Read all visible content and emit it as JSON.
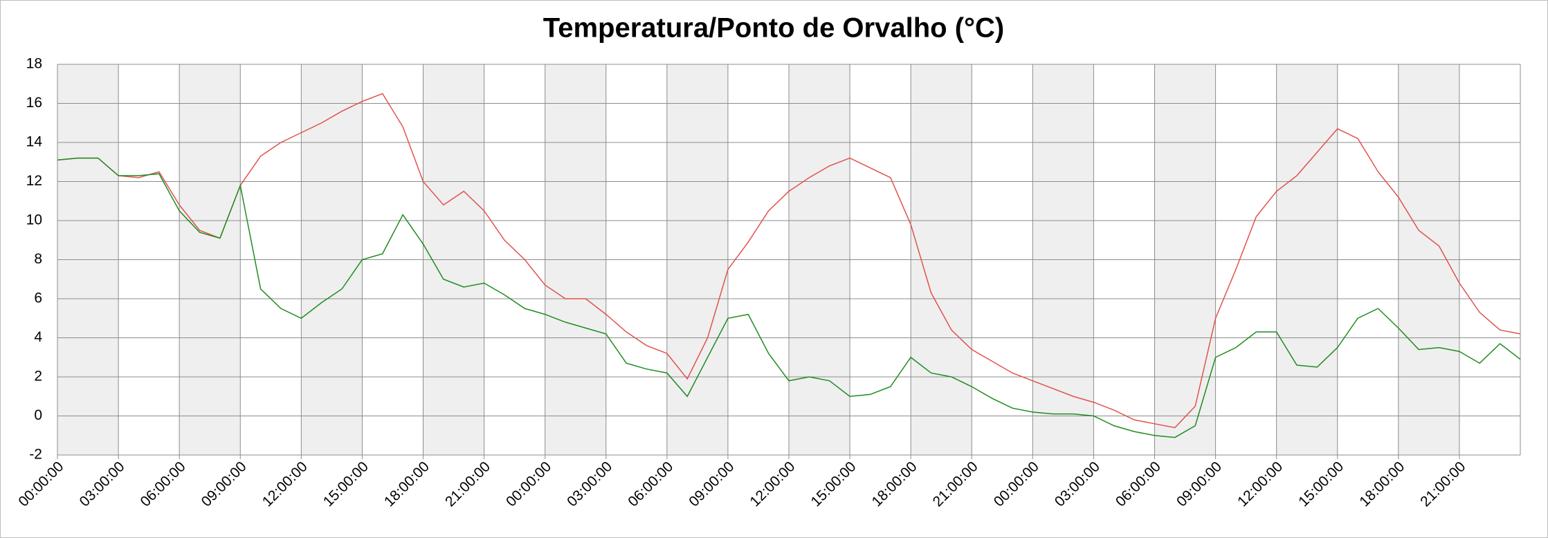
{
  "chart_data": {
    "type": "line",
    "title": "Temperatura/Ponto de Orvalho (°C)",
    "x": [
      0,
      1,
      2,
      3,
      4,
      5,
      6,
      7,
      8,
      9,
      10,
      11,
      12,
      13,
      14,
      15,
      16,
      17,
      18,
      19,
      20,
      21,
      22,
      23,
      24,
      25,
      26,
      27,
      28,
      29,
      30,
      31,
      32,
      33,
      34,
      35,
      36,
      37,
      38,
      39,
      40,
      41,
      42,
      43,
      44,
      45,
      46,
      47,
      48,
      49,
      50,
      51,
      52,
      53,
      54,
      55,
      56,
      57,
      58,
      59,
      60,
      61,
      62,
      63,
      64,
      65,
      66,
      67,
      68,
      69,
      70,
      71,
      72
    ],
    "series": [
      {
        "color": "#e0524f",
        "values": [
          13.1,
          13.2,
          13.2,
          12.3,
          12.2,
          12.5,
          10.8,
          9.5,
          9.1,
          11.8,
          13.3,
          14.0,
          14.5,
          15.0,
          15.6,
          16.1,
          16.5,
          14.8,
          12.0,
          10.8,
          11.5,
          10.5,
          9.0,
          8.0,
          6.7,
          6.0,
          6.0,
          5.2,
          4.3,
          3.6,
          3.2,
          1.9,
          4.0,
          7.5,
          8.9,
          10.5,
          11.5,
          12.2,
          12.8,
          13.2,
          12.7,
          12.2,
          9.8,
          6.3,
          4.4,
          3.4,
          2.8,
          2.2,
          1.8,
          1.4,
          1.0,
          0.7,
          0.3,
          -0.2,
          -0.4,
          -0.6,
          0.5,
          5.0,
          7.5,
          10.2,
          11.5,
          12.3,
          13.5,
          14.7,
          14.2,
          12.5,
          11.2,
          9.5,
          8.7,
          6.8,
          5.3,
          4.4,
          4.2
        ]
      },
      {
        "color": "#1e8c1e",
        "values": [
          13.1,
          13.2,
          13.2,
          12.3,
          12.3,
          12.4,
          10.5,
          9.4,
          9.1,
          11.8,
          6.5,
          5.5,
          5.0,
          5.8,
          6.5,
          8.0,
          8.3,
          10.3,
          8.8,
          7.0,
          6.6,
          6.8,
          6.2,
          5.5,
          5.2,
          4.8,
          4.5,
          4.2,
          2.7,
          2.4,
          2.2,
          1.0,
          3.0,
          5.0,
          5.2,
          3.2,
          1.8,
          2.0,
          1.8,
          1.0,
          1.1,
          1.5,
          3.0,
          2.2,
          2.0,
          1.5,
          0.9,
          0.4,
          0.2,
          0.1,
          0.1,
          0.0,
          -0.5,
          -0.8,
          -1.0,
          -1.1,
          -0.5,
          3.0,
          3.5,
          4.3,
          4.3,
          2.6,
          2.5,
          3.5,
          5.0,
          5.5,
          4.5,
          3.4,
          3.5,
          3.3,
          2.7,
          3.7,
          2.9
        ]
      }
    ],
    "xlim": [
      0,
      72
    ],
    "xticks": [
      {
        "value": 0,
        "label": "00:00:00"
      },
      {
        "value": 3,
        "label": "03:00:00"
      },
      {
        "value": 6,
        "label": "06:00:00"
      },
      {
        "value": 9,
        "label": "09:00:00"
      },
      {
        "value": 12,
        "label": "12:00:00"
      },
      {
        "value": 15,
        "label": "15:00:00"
      },
      {
        "value": 18,
        "label": "18:00:00"
      },
      {
        "value": 21,
        "label": "21:00:00"
      },
      {
        "value": 24,
        "label": "00:00:00"
      },
      {
        "value": 27,
        "label": "03:00:00"
      },
      {
        "value": 30,
        "label": "06:00:00"
      },
      {
        "value": 33,
        "label": "09:00:00"
      },
      {
        "value": 36,
        "label": "12:00:00"
      },
      {
        "value": 39,
        "label": "15:00:00"
      },
      {
        "value": 42,
        "label": "18:00:00"
      },
      {
        "value": 45,
        "label": "21:00:00"
      },
      {
        "value": 48,
        "label": "00:00:00"
      },
      {
        "value": 51,
        "label": "03:00:00"
      },
      {
        "value": 54,
        "label": "06:00:00"
      },
      {
        "value": 57,
        "label": "09:00:00"
      },
      {
        "value": 60,
        "label": "12:00:00"
      },
      {
        "value": 63,
        "label": "15:00:00"
      },
      {
        "value": 66,
        "label": "18:00:00"
      },
      {
        "value": 69,
        "label": "21:00:00"
      }
    ],
    "ylim": [
      -2,
      18
    ],
    "yticks": [
      -2,
      0,
      2,
      4,
      6,
      8,
      10,
      12,
      14,
      16,
      18
    ],
    "grid": true
  }
}
